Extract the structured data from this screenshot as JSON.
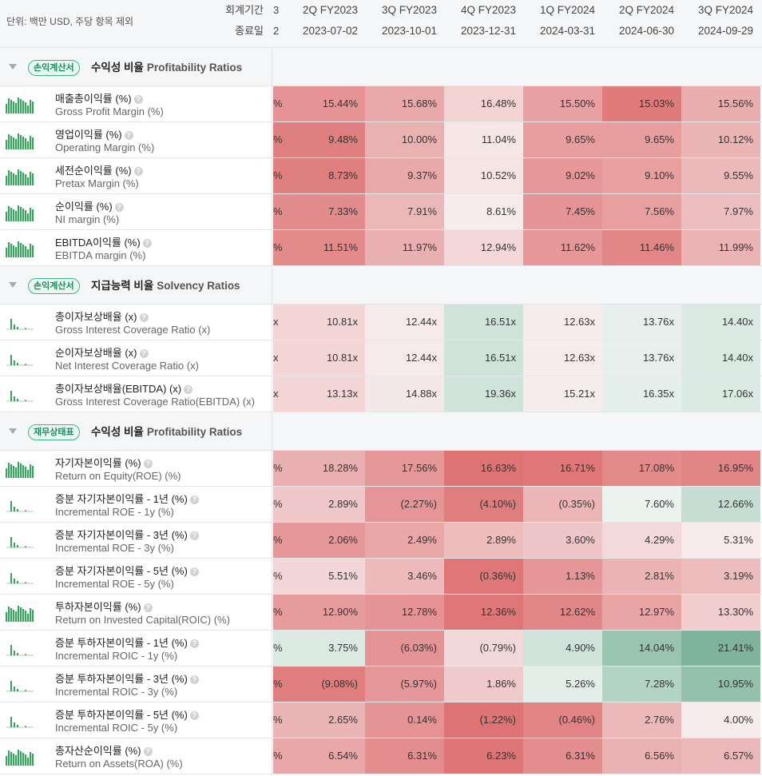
{
  "header": {
    "unit": "단위: 백만 USD, 주당 항목 제외",
    "period_label": "회계기간",
    "date_label": "종료일",
    "partial_period": "3",
    "partial_date": "2",
    "columns": [
      {
        "period": "2Q FY2023",
        "date": "2023-07-02"
      },
      {
        "period": "3Q FY2023",
        "date": "2023-10-01"
      },
      {
        "period": "4Q FY2023",
        "date": "2023-12-31"
      },
      {
        "period": "1Q FY2024",
        "date": "2024-03-31"
      },
      {
        "period": "2Q FY2024",
        "date": "2024-06-30"
      },
      {
        "period": "3Q FY2024",
        "date": "2024-09-29"
      }
    ]
  },
  "sections": [
    {
      "badge": "손익계산서",
      "title_ko": "수익성 비율",
      "title_en": "Profitability Ratios",
      "rows": [
        {
          "ko": "매출총이익률 (%)",
          "en": "Gross Profit Margin (%)",
          "partial": "%",
          "spark": "bars",
          "values": [
            "15.44%",
            "15.68%",
            "16.48%",
            "15.50%",
            "15.03%",
            "15.56%"
          ],
          "colors": [
            "#e59394",
            "#e9a8a9",
            "#f3d2d3",
            "#e8a1a2",
            "#e07b7c",
            "#eaaeaf"
          ]
        },
        {
          "ko": "영업이익률 (%)",
          "en": "Operating Margin (%)",
          "partial": "%",
          "spark": "bars",
          "values": [
            "9.48%",
            "10.00%",
            "11.04%",
            "9.65%",
            "9.65%",
            "10.12%"
          ],
          "colors": [
            "#e07f80",
            "#eab1b2",
            "#f7e6e6",
            "#e89e9f",
            "#e89e9f",
            "#ebb5b6"
          ]
        },
        {
          "ko": "세전순이익률 (%)",
          "en": "Pretax Margin (%)",
          "partial": "%",
          "spark": "bars",
          "values": [
            "8.73%",
            "9.37%",
            "10.52%",
            "9.02%",
            "9.10%",
            "9.55%"
          ],
          "colors": [
            "#e07f80",
            "#e9a9aa",
            "#f6e3e3",
            "#e69798",
            "#e8a0a1",
            "#ecb9ba"
          ]
        },
        {
          "ko": "순이익률 (%)",
          "en": "NI margin (%)",
          "partial": "%",
          "spark": "bars",
          "values": [
            "7.33%",
            "7.91%",
            "8.61%",
            "7.45%",
            "7.56%",
            "7.97%"
          ],
          "colors": [
            "#e38c8d",
            "#ecb7b8",
            "#f6eced",
            "#e59394",
            "#e89fa0",
            "#edbebf"
          ]
        },
        {
          "ko": "EBITDA이익률 (%)",
          "en": "EBITDA margin (%)",
          "partial": "%",
          "spark": "bars",
          "values": [
            "11.51%",
            "11.97%",
            "12.94%",
            "11.62%",
            "11.46%",
            "11.99%"
          ],
          "colors": [
            "#e38a8b",
            "#eab0b1",
            "#f4d7d8",
            "#e69899",
            "#e28687",
            "#ebb3b4"
          ]
        }
      ]
    },
    {
      "badge": "손익계산서",
      "title_ko": "지급능력 비율",
      "title_en": "Solvency Ratios",
      "rows": [
        {
          "ko": "총이자보상배율 (x)",
          "en": "Gross Interest Coverage Ratio (x)",
          "partial": "x",
          "spark": "sparse",
          "values": [
            "10.81x",
            "12.44x",
            "16.51x",
            "12.63x",
            "13.76x",
            "14.40x"
          ],
          "colors": [
            "#f4d6d7",
            "#f6eaeb",
            "#cfe3db",
            "#f6ecec",
            "#e7f0ec",
            "#dbe9e3"
          ]
        },
        {
          "ko": "순이자보상배율 (x)",
          "en": "Net Interest Coverage Ratio (x)",
          "partial": "x",
          "spark": "sparse",
          "values": [
            "10.81x",
            "12.44x",
            "16.51x",
            "12.63x",
            "13.76x",
            "14.40x"
          ],
          "colors": [
            "#f4d6d7",
            "#f6eaeb",
            "#cfe3db",
            "#f6ecec",
            "#e7f0ec",
            "#dbe9e3"
          ]
        },
        {
          "ko": "총이자보상배율(EBITDA) (x)",
          "en": "Gross Interest Coverage Ratio(EBITDA) (x)",
          "partial": "x",
          "spark": "sparse",
          "values": [
            "13.13x",
            "14.88x",
            "19.36x",
            "15.21x",
            "16.35x",
            "17.06x"
          ],
          "colors": [
            "#f4d6d7",
            "#f5e8e8",
            "#cfe3db",
            "#f5eded",
            "#e5efeb",
            "#dae9e2"
          ]
        }
      ]
    },
    {
      "badge": "재무상태표",
      "title_ko": "수익성 비율",
      "title_en": "Profitability Ratios",
      "rows": [
        {
          "ko": "자기자본이익률 (%)",
          "en": "Return on Equity(ROE) (%)",
          "partial": "%",
          "spark": "bars",
          "values": [
            "18.28%",
            "17.56%",
            "16.63%",
            "16.71%",
            "17.08%",
            "16.95%"
          ],
          "colors": [
            "#eab0b1",
            "#e69899",
            "#de7374",
            "#df7778",
            "#e38a8b",
            "#e28586"
          ]
        },
        {
          "ko": "증분 자기자본이익률 - 1년 (%)",
          "en": "Incremental ROE - 1y (%)",
          "partial": "%",
          "spark": "sparse",
          "values": [
            "2.89%",
            "(2.27%)",
            "(4.10%)",
            "(0.35%)",
            "7.60%",
            "12.66%"
          ],
          "colors": [
            "#f0c7c8",
            "#e69596",
            "#e07d7e",
            "#ecb6b7",
            "#ebf3ef",
            "#c5ddd2"
          ]
        },
        {
          "ko": "증분 자기자본이익률 - 3년 (%)",
          "en": "Incremental ROE - 3y (%)",
          "partial": "%",
          "spark": "sparse",
          "values": [
            "2.06%",
            "2.49%",
            "2.89%",
            "3.60%",
            "4.29%",
            "5.31%"
          ],
          "colors": [
            "#e69798",
            "#e9a7a8",
            "#edbdbe",
            "#efc6c7",
            "#f3d9da",
            "#f6eaeb"
          ]
        },
        {
          "ko": "증분 자기자본이익률 - 5년 (%)",
          "en": "Incremental ROE - 5y (%)",
          "partial": "%",
          "spark": "sparse",
          "values": [
            "5.51%",
            "3.46%",
            "(0.36%)",
            "1.13%",
            "2.81%",
            "3.19%"
          ],
          "colors": [
            "#f3d6d7",
            "#eeb9ba",
            "#df7778",
            "#e69697",
            "#ecb3b4",
            "#edbcbd"
          ]
        },
        {
          "ko": "투하자본이익률 (%)",
          "en": "Return on Invested Capital(ROIC) (%)",
          "partial": "%",
          "spark": "bars",
          "values": [
            "12.90%",
            "12.78%",
            "12.36%",
            "12.62%",
            "12.97%",
            "13.30%"
          ],
          "colors": [
            "#e69b9c",
            "#e59394",
            "#df7778",
            "#e28788",
            "#e9a5a6",
            "#f1cdce"
          ]
        },
        {
          "ko": "증분 투하자본이익률 - 1년 (%)",
          "en": "Incremental ROIC - 1y (%)",
          "partial": "%",
          "spark": "sparse",
          "values": [
            "3.75%",
            "(6.03%)",
            "(0.79%)",
            "4.90%",
            "14.04%",
            "21.41%"
          ],
          "colors": [
            "#dbe9e3",
            "#e59394",
            "#f3d8d9",
            "#cfe3db",
            "#98c4b0",
            "#7fb49c"
          ]
        },
        {
          "ko": "증분 투하자본이익률 - 3년 (%)",
          "en": "Incremental ROIC - 3y (%)",
          "partial": "%",
          "spark": "sparse",
          "values": [
            "(9.08%)",
            "(5.97%)",
            "1.86%",
            "5.26%",
            "7.28%",
            "10.95%"
          ],
          "colors": [
            "#e07d7e",
            "#e69798",
            "#f0c9ca",
            "#e3eee9",
            "#b3d3c4",
            "#93c0ab"
          ]
        },
        {
          "ko": "증분 투하자본이익률 - 5년 (%)",
          "en": "Incremental ROIC - 5y (%)",
          "partial": "%",
          "spark": "sparse",
          "values": [
            "2.65%",
            "0.14%",
            "(1.22%)",
            "(0.46%)",
            "2.76%",
            "4.00%"
          ],
          "colors": [
            "#ebb4b5",
            "#e59394",
            "#de7374",
            "#e28485",
            "#ecb8b9",
            "#f6ecec"
          ]
        },
        {
          "ko": "총자산순이익률 (%)",
          "en": "Return on Assets(ROA) (%)",
          "partial": "%",
          "spark": "bars",
          "values": [
            "6.54%",
            "6.31%",
            "6.23%",
            "6.31%",
            "6.56%",
            "6.57%"
          ],
          "colors": [
            "#e9a7a8",
            "#e38d8e",
            "#de7576",
            "#e38d8e",
            "#ebb2b3",
            "#ecb7b8"
          ]
        }
      ]
    }
  ]
}
